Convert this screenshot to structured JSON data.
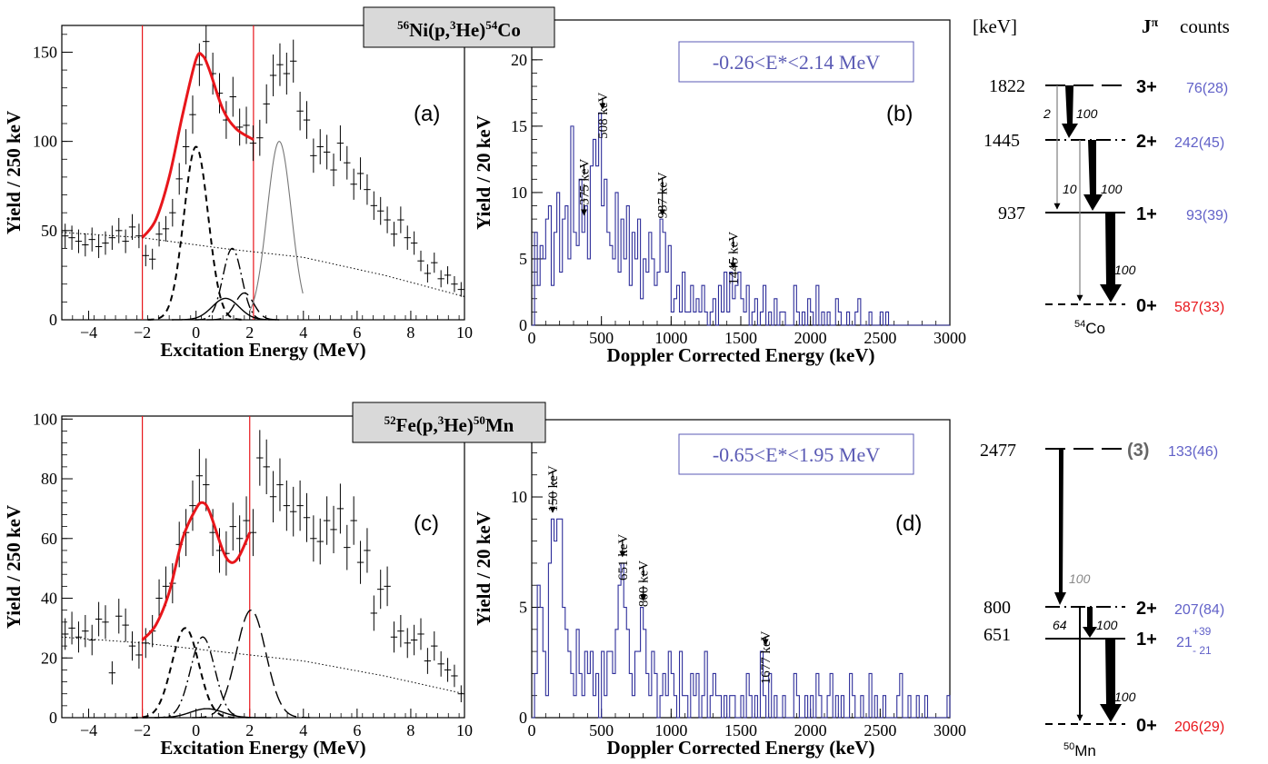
{
  "figure": {
    "reaction_top": {
      "pre": "56",
      "mid": "Ni(p,",
      "sup": "3",
      "post": "He)",
      "pre2": "54",
      "end": "Co"
    },
    "reaction_bottom": {
      "pre": "52",
      "mid": "Fe(p,",
      "sup": "3",
      "post": "He)",
      "pre2": "50",
      "end": "Mn"
    }
  },
  "chart_data": [
    {
      "id": "a",
      "type": "scatter",
      "panel_label": "(a)",
      "xlabel": "Excitation Energy (MeV)",
      "ylabel": "Yield / 250 keV",
      "xlim": [
        -5,
        10
      ],
      "ylim": [
        0,
        165
      ],
      "xticks": [
        -4,
        -2,
        0,
        2,
        4,
        6,
        8,
        10
      ],
      "yticks": [
        0,
        50,
        100,
        150
      ],
      "gate": [
        -2.0,
        2.14
      ],
      "points": {
        "x": [
          -4.875,
          -4.625,
          -4.375,
          -4.125,
          -3.875,
          -3.625,
          -3.375,
          -3.125,
          -2.875,
          -2.625,
          -2.375,
          -2.125,
          -1.875,
          -1.625,
          -1.375,
          -1.125,
          -0.875,
          -0.625,
          -0.375,
          -0.125,
          0.125,
          0.375,
          0.625,
          0.875,
          1.125,
          1.375,
          1.625,
          1.875,
          2.125,
          2.375,
          2.625,
          2.875,
          3.125,
          3.375,
          3.625,
          3.875,
          4.125,
          4.375,
          4.625,
          4.875,
          5.125,
          5.375,
          5.625,
          5.875,
          6.125,
          6.375,
          6.625,
          6.875,
          7.125,
          7.375,
          7.625,
          7.875,
          8.125,
          8.375,
          8.625,
          8.875,
          9.125,
          9.375,
          9.625,
          9.875
        ],
        "y": [
          47,
          46,
          44,
          42,
          45,
          41,
          43,
          46,
          50,
          44,
          52,
          47,
          36,
          34,
          48,
          51,
          60,
          79,
          97,
          115,
          143,
          156,
          138,
          127,
          112,
          125,
          108,
          109,
          99,
          102,
          121,
          137,
          143,
          138,
          145,
          117,
          112,
          92,
          97,
          94,
          84,
          99,
          88,
          76,
          82,
          73,
          64,
          61,
          56,
          48,
          56,
          46,
          43,
          33,
          26,
          32,
          23,
          25,
          20,
          17
        ]
      },
      "fit_curve": [
        [
          -2,
          46
        ],
        [
          -1.5,
          56
        ],
        [
          -1,
          80
        ],
        [
          -0.5,
          115
        ],
        [
          0,
          146
        ],
        [
          0.25,
          148
        ],
        [
          0.5,
          140
        ],
        [
          1,
          118
        ],
        [
          1.5,
          107
        ],
        [
          2.14,
          101
        ]
      ],
      "background": [
        [
          -5,
          49
        ],
        [
          -2,
          46
        ],
        [
          1,
          40
        ],
        [
          4,
          35
        ],
        [
          7,
          25
        ],
        [
          10,
          13
        ]
      ],
      "components": [
        {
          "center": 0.0,
          "amp": 97,
          "sigma": 0.45,
          "style": "dashed"
        },
        {
          "center": 1.1,
          "amp": 12,
          "sigma": 0.5,
          "style": "solid"
        },
        {
          "center": 1.35,
          "amp": 40,
          "sigma": 0.35,
          "style": "dashdot"
        },
        {
          "center": 1.8,
          "amp": 15,
          "sigma": 0.35,
          "style": "longdash"
        }
      ],
      "extra_peak": {
        "center": 3.1,
        "amp": 100,
        "sigma": 0.45,
        "range": [
          2.0,
          4.0
        ]
      }
    },
    {
      "id": "b",
      "type": "bar",
      "panel_label": "(b)",
      "xlabel": "Doppler Corrected Energy (keV)",
      "ylabel": "Yield / 20 keV",
      "xlim": [
        0,
        3000
      ],
      "ylim": [
        0,
        23
      ],
      "xticks": [
        0,
        500,
        1000,
        1500,
        2000,
        2500,
        3000
      ],
      "yticks": [
        0,
        5,
        10,
        15,
        20
      ],
      "gate_text": "-0.26<E*<2.14 MeV",
      "bin_width": 20,
      "counts": [
        0,
        7,
        3,
        6,
        5,
        8,
        9,
        3,
        7,
        10,
        4,
        8,
        9,
        5,
        15,
        7,
        6,
        11,
        7,
        9,
        5,
        12,
        14,
        12,
        16,
        9,
        11,
        7,
        6,
        5,
        10,
        4,
        8,
        5,
        9,
        3,
        7,
        5,
        8,
        2,
        5,
        4,
        7,
        5,
        3,
        4,
        8,
        7,
        4,
        6,
        1,
        2,
        3,
        1,
        4,
        1,
        1,
        3,
        1,
        2,
        1,
        3,
        1,
        0,
        1,
        2,
        0,
        3,
        1,
        4,
        1,
        4,
        2,
        3,
        4,
        2,
        1,
        3,
        0,
        1,
        2,
        0,
        1,
        3,
        0,
        1,
        0,
        2,
        0,
        1,
        1,
        0,
        0,
        0,
        3,
        1,
        0,
        1,
        0,
        2,
        1,
        0,
        3,
        0,
        1,
        0,
        1,
        0,
        0,
        2,
        1,
        0,
        0,
        1,
        0,
        0,
        1,
        2,
        0,
        0,
        0,
        1,
        0,
        0,
        0,
        1,
        0,
        1,
        0,
        0,
        0,
        0,
        0,
        0,
        0,
        0,
        0,
        0,
        0,
        0,
        0,
        0,
        0,
        0,
        0,
        0,
        0,
        0,
        0,
        0
      ],
      "annotations": [
        {
          "label": "375 keV",
          "x": 375,
          "y_tip": 8.3,
          "y_top": 16,
          "style": "dashdot"
        },
        {
          "label": "508 keV",
          "x": 508,
          "y_tip": 16.3,
          "y_top": 21,
          "style": "longdash"
        },
        {
          "label": "937 keV",
          "x": 937,
          "y_tip": 8.3,
          "y_top": 15,
          "style": "solid"
        },
        {
          "label": "1445 keV",
          "x": 1445,
          "y_tip": 4.3,
          "y_top": 11,
          "style": "dashdot"
        }
      ]
    },
    {
      "id": "c",
      "type": "scatter",
      "panel_label": "(c)",
      "xlabel": "Excitation Energy (MeV)",
      "ylabel": "Yield / 250 keV",
      "xlim": [
        -5,
        10
      ],
      "ylim": [
        0,
        101
      ],
      "xticks": [
        -4,
        -2,
        0,
        2,
        4,
        6,
        8,
        10
      ],
      "yticks": [
        0,
        20,
        40,
        60,
        80,
        100
      ],
      "gate": [
        -2.0,
        2.0
      ],
      "points": {
        "x": [
          -4.875,
          -4.625,
          -4.375,
          -4.125,
          -3.875,
          -3.625,
          -3.375,
          -3.125,
          -2.875,
          -2.625,
          -2.375,
          -2.125,
          -1.875,
          -1.625,
          -1.375,
          -1.125,
          -0.875,
          -0.625,
          -0.375,
          -0.125,
          0.125,
          0.375,
          0.625,
          0.875,
          1.125,
          1.375,
          1.625,
          1.875,
          2.125,
          2.375,
          2.625,
          2.875,
          3.125,
          3.375,
          3.625,
          3.875,
          4.125,
          4.375,
          4.625,
          4.875,
          5.125,
          5.375,
          5.625,
          5.875,
          6.125,
          6.375,
          6.625,
          6.875,
          7.125,
          7.375,
          7.625,
          7.875,
          8.125,
          8.375,
          8.625,
          8.875,
          9.125,
          9.375,
          9.625,
          9.875
        ],
        "y": [
          28,
          30,
          27,
          29,
          26,
          33,
          32,
          15,
          34,
          31,
          24,
          21,
          25,
          29,
          40,
          44,
          45,
          58,
          62,
          71,
          81,
          78,
          62,
          56,
          55,
          64,
          60,
          66,
          62,
          87,
          84,
          74,
          78,
          71,
          69,
          71,
          67,
          60,
          59,
          66,
          63,
          70,
          57,
          66,
          52,
          56,
          35,
          43,
          44,
          27,
          29,
          25,
          26,
          28,
          19,
          24,
          18,
          16,
          14,
          8
        ]
      },
      "fit_curve": [
        [
          -2,
          26
        ],
        [
          -1.5,
          31
        ],
        [
          -1,
          42
        ],
        [
          -0.5,
          60
        ],
        [
          0,
          70
        ],
        [
          0.25,
          72
        ],
        [
          0.5,
          69
        ],
        [
          1,
          56
        ],
        [
          1.3,
          52
        ],
        [
          1.6,
          54
        ],
        [
          2.0,
          62
        ]
      ],
      "background": [
        [
          -5,
          27
        ],
        [
          -2,
          25
        ],
        [
          1,
          22
        ],
        [
          4,
          19
        ],
        [
          7,
          14
        ],
        [
          10,
          8
        ]
      ],
      "components": [
        {
          "center": -0.4,
          "amp": 30,
          "sigma": 0.5,
          "style": "dashed"
        },
        {
          "center": 0.4,
          "amp": 3,
          "sigma": 0.6,
          "style": "solid"
        },
        {
          "center": 0.25,
          "amp": 27,
          "sigma": 0.45,
          "style": "dashdot"
        },
        {
          "center": 2.05,
          "amp": 36,
          "sigma": 0.55,
          "style": "longdash"
        }
      ]
    },
    {
      "id": "d",
      "type": "bar",
      "panel_label": "(d)",
      "xlabel": "Doppler Corrected Energy (keV)",
      "ylabel": "Yield / 20 keV",
      "xlim": [
        0,
        3000
      ],
      "ylim": [
        0,
        13.5
      ],
      "xticks": [
        0,
        500,
        1000,
        1500,
        2000,
        2500,
        3000
      ],
      "yticks": [
        0,
        5,
        10
      ],
      "gate_text": "-0.65<E*<1.95 MeV",
      "bin_width": 20,
      "counts": [
        0,
        2,
        6,
        5,
        3,
        1,
        7,
        9,
        8,
        9,
        9,
        5,
        4,
        3,
        2,
        1,
        4,
        2,
        1,
        3,
        2,
        3,
        1,
        2,
        0,
        3,
        1,
        3,
        3,
        2,
        4,
        6,
        7,
        5,
        4,
        2,
        1,
        3,
        3,
        5,
        4,
        2,
        1,
        3,
        2,
        0,
        1,
        2,
        1,
        3,
        2,
        1,
        0,
        3,
        1,
        1,
        0,
        2,
        1,
        2,
        0,
        1,
        3,
        0,
        1,
        2,
        1,
        1,
        0,
        1,
        0,
        1,
        1,
        0,
        0,
        1,
        0,
        2,
        1,
        0,
        1,
        0,
        3,
        1,
        0,
        2,
        0,
        1,
        0,
        0,
        1,
        0,
        0,
        0,
        2,
        1,
        0,
        0,
        1,
        0,
        1,
        0,
        2,
        1,
        0,
        0,
        1,
        2,
        0,
        1,
        0,
        1,
        0,
        0,
        2,
        1,
        0,
        0,
        1,
        0,
        0,
        2,
        0,
        1,
        0,
        0,
        1,
        0,
        0,
        0,
        0,
        1,
        2,
        0,
        0,
        1,
        0,
        0,
        1,
        0,
        0,
        1,
        0,
        0,
        0,
        0,
        0,
        0,
        0,
        1
      ],
      "annotations": [
        {
          "label": "150 keV",
          "x": 150,
          "y_tip": 9.3,
          "y_top": 13.5,
          "style": "longdash"
        },
        {
          "label": "651 keV",
          "x": 651,
          "y_tip": 7.3,
          "y_top": 10.4,
          "style": "solid"
        },
        {
          "label": "800 keV",
          "x": 800,
          "y_tip": 5.3,
          "y_top": 9.2,
          "style": "dashdot"
        },
        {
          "label": "1677 keV",
          "x": 1677,
          "y_tip": 3.3,
          "y_top": 6.3,
          "style": "longdash"
        }
      ]
    }
  ],
  "level_schemes": {
    "header": {
      "energy_unit": "[keV]",
      "jpi": "J",
      "jpi_sup": "π",
      "counts": "counts"
    },
    "co54": {
      "nucleus_mass": "54",
      "nucleus_sym": "Co",
      "levels": [
        {
          "energy": "1822",
          "jpi": "3+",
          "counts": "76(28)",
          "style": "longdash"
        },
        {
          "energy": "1445",
          "jpi": "2+",
          "counts": "242(45)",
          "style": "dashdot"
        },
        {
          "energy": "937",
          "jpi": "1+",
          "counts": "93(39)",
          "style": "solid"
        },
        {
          "energy": "",
          "jpi": "0+",
          "counts": "587(33)",
          "style": "dashed"
        }
      ],
      "branch_labels": [
        "2",
        "100",
        "10",
        "100",
        "100"
      ]
    },
    "mn50": {
      "nucleus_mass": "50",
      "nucleus_sym": "Mn",
      "levels": [
        {
          "energy": "2477",
          "jpi": "(3)",
          "counts": "133(46)",
          "style": "longdash"
        },
        {
          "energy": "800",
          "jpi": "2+",
          "counts": "207(84)",
          "style": "dashdot"
        },
        {
          "energy": "651",
          "jpi": "1+",
          "counts": "21",
          "counts_sup": "+39",
          "counts_sub": "- 21",
          "style": "solid"
        },
        {
          "energy": "",
          "jpi": "0+",
          "counts": "206(29)",
          "style": "dashed"
        }
      ],
      "branch_labels": [
        "100",
        "64",
        "100",
        "100"
      ]
    }
  },
  "colors": {
    "fit": "#e8161b",
    "histogram": "#2e2e9a",
    "gate_line": "#e8161b",
    "counts_blue": "#6161c8",
    "counts_red": "#e8161b",
    "gate_box": "#5a5ab4",
    "title_box": "#d9d9d9"
  }
}
